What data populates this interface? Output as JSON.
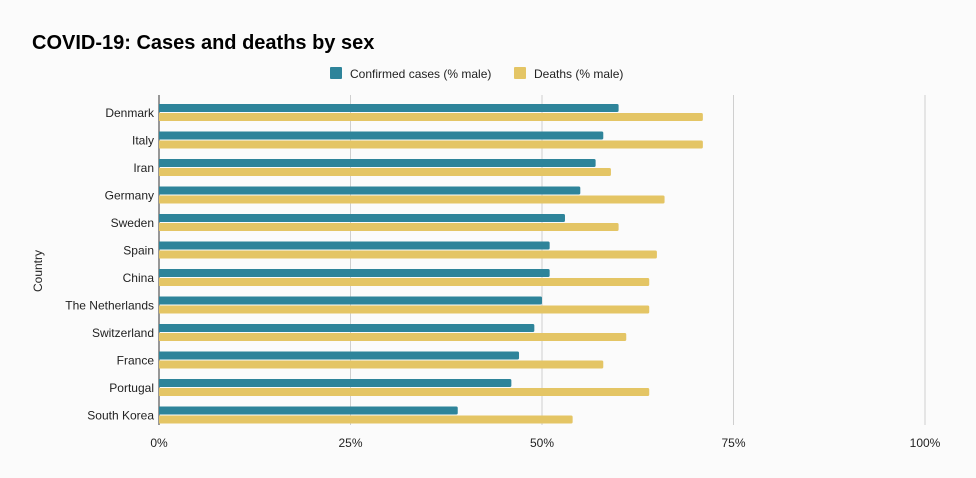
{
  "chart_data": {
    "type": "bar",
    "orientation": "horizontal",
    "title": "COVID-19: Cases and deaths by sex",
    "xlabel": "",
    "ylabel": "Country",
    "xlim": [
      0,
      100
    ],
    "x_ticks": [
      "0%",
      "25%",
      "50%",
      "75%",
      "100%"
    ],
    "x_tick_values": [
      0,
      25,
      50,
      75,
      100
    ],
    "grid": true,
    "legend_position": "top-center",
    "categories": [
      "Denmark",
      "Italy",
      "Iran",
      "Germany",
      "Sweden",
      "Spain",
      "China",
      "The Netherlands",
      "Switzerland",
      "France",
      "Portugal",
      "South Korea"
    ],
    "series": [
      {
        "name": "Confirmed cases (% male)",
        "color": "#2e849a",
        "values": [
          60,
          58,
          57,
          55,
          53,
          51,
          51,
          50,
          49,
          47,
          46,
          39
        ]
      },
      {
        "name": "Deaths (% male)",
        "color": "#e4c565",
        "values": [
          71,
          71,
          59,
          66,
          60,
          65,
          64,
          64,
          61,
          58,
          64,
          54
        ]
      }
    ]
  }
}
